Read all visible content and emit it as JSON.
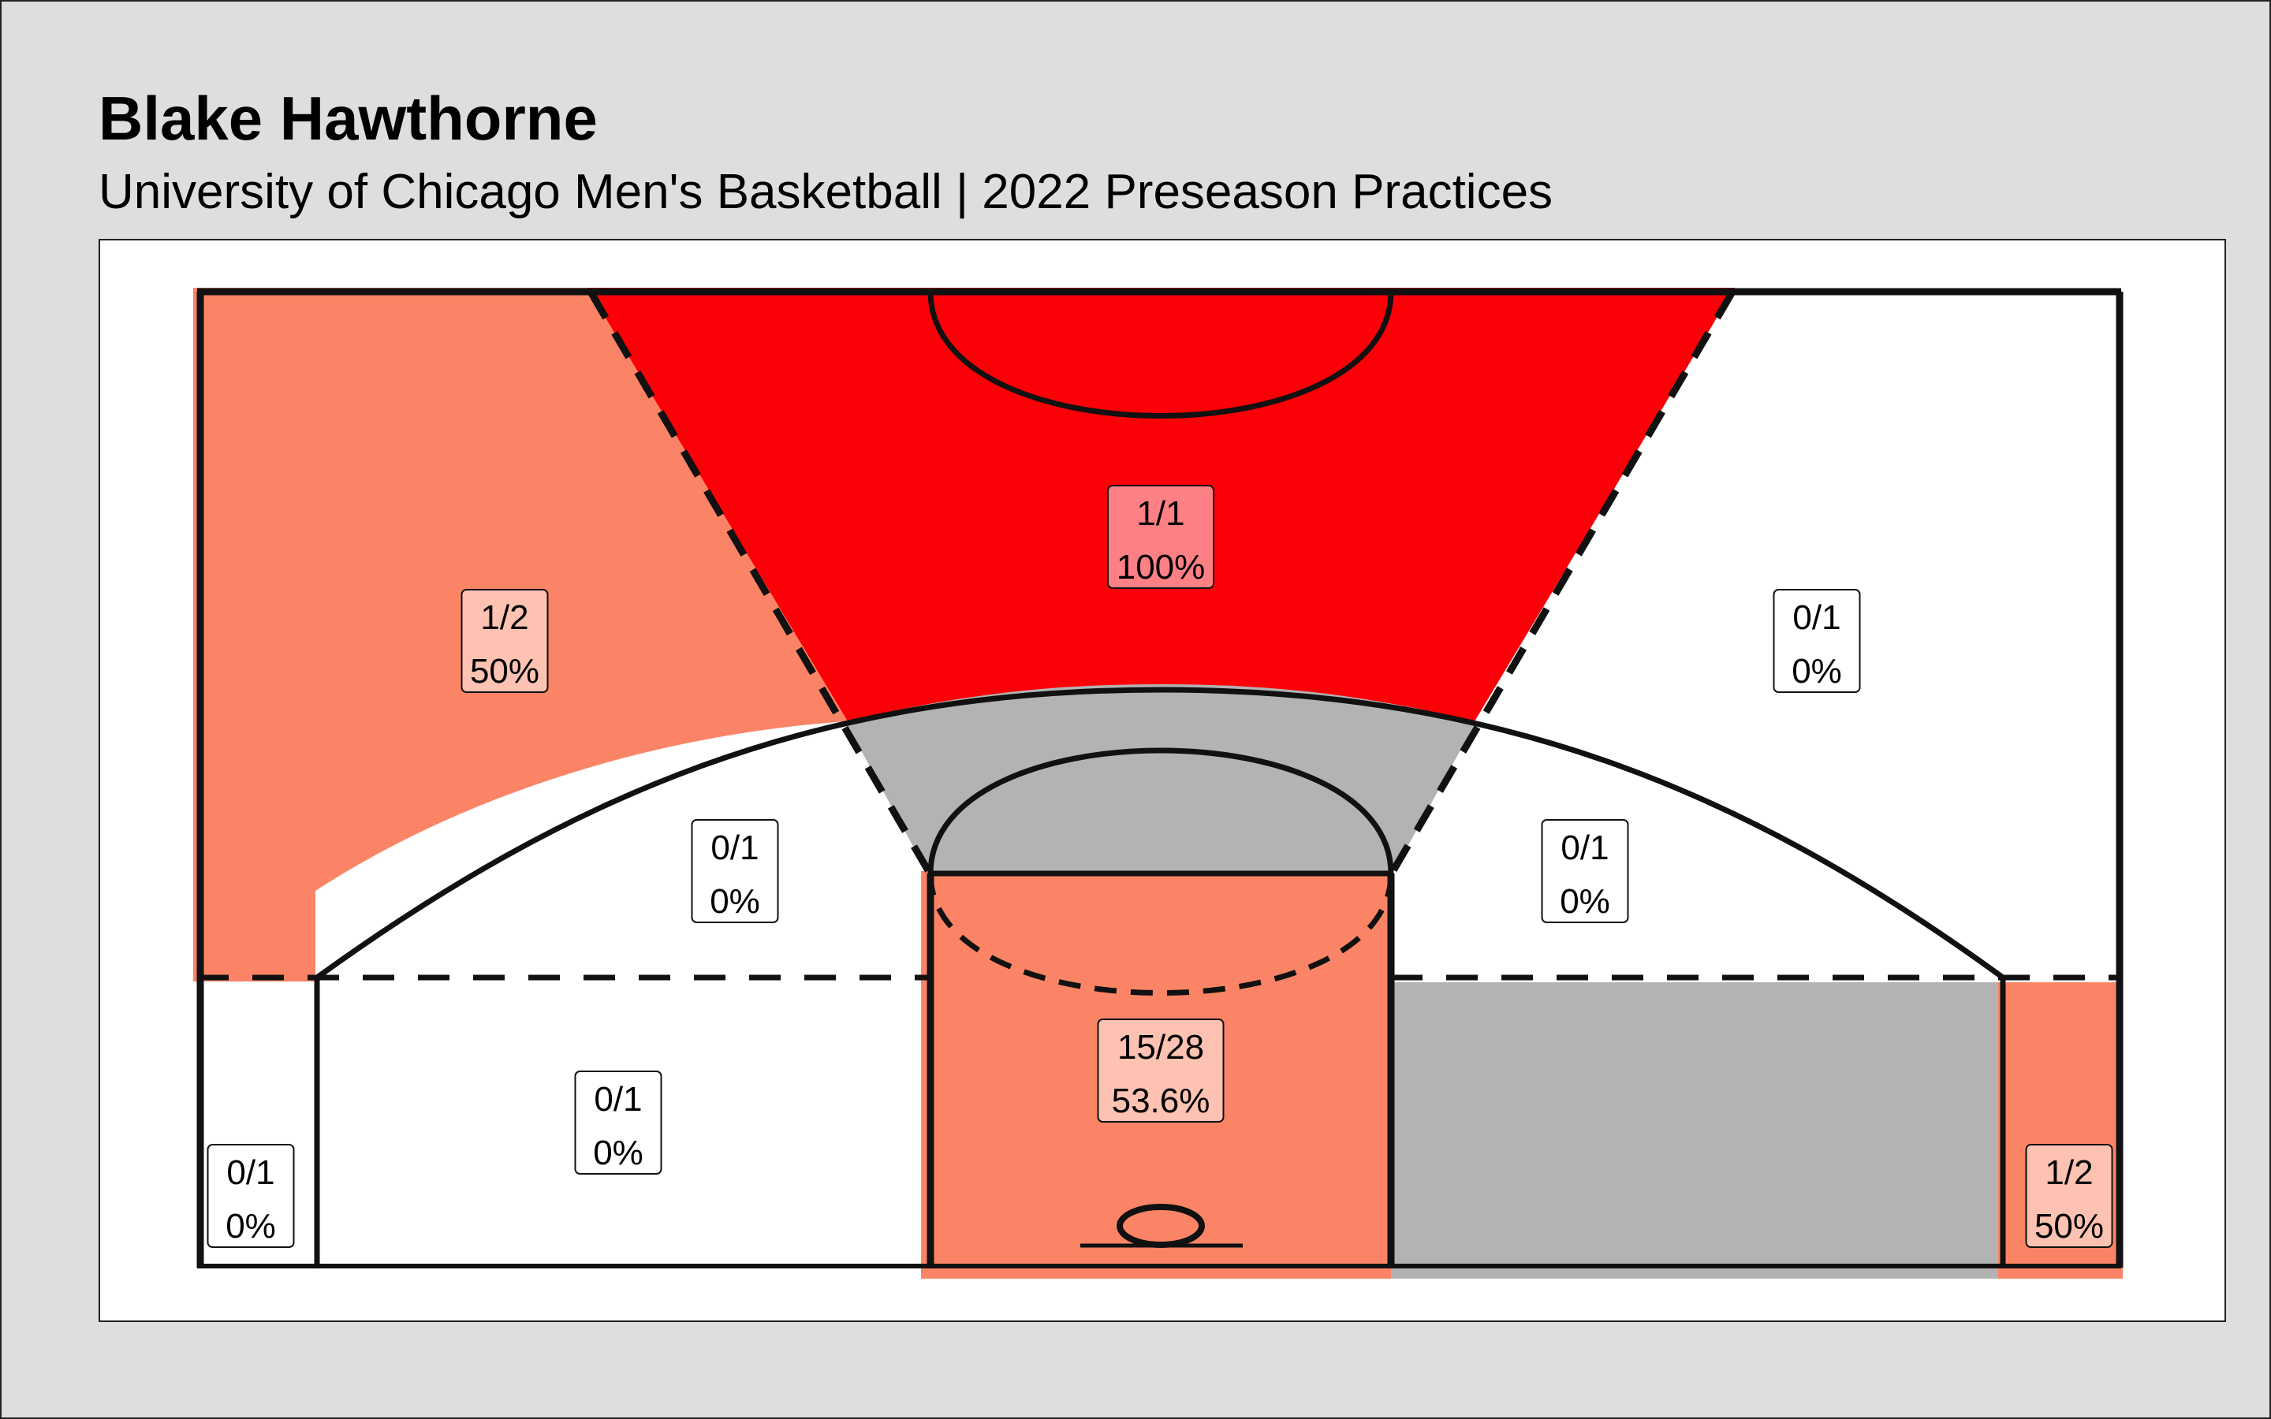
{
  "title": "Blake Hawthorne",
  "subtitle": "University of Chicago Men's Basketball | 2022 Preseason Practices",
  "colors": {
    "page_background": "#dedede",
    "panel_background": "#ffffff",
    "hot": "#fb0007",
    "warm": "#fc8466",
    "cold": "#ffffff",
    "no_attempts": "#b3b3b3",
    "label_hot": "#fd8084",
    "label_warm": "#fdc2b2",
    "label_cold": "#ffffff"
  },
  "chart_data": {
    "type": "heatmap",
    "title": "Blake Hawthorne",
    "subtitle": "University of Chicago Men's Basketball | 2022 Preseason Practices",
    "zones": [
      {
        "zone": "left-corner-three",
        "made": 0,
        "attempts": 1,
        "made_attempts": "0/1",
        "pct": 0,
        "pct_label": "0%"
      },
      {
        "zone": "left-baseline-midrange",
        "made": 0,
        "attempts": 1,
        "made_attempts": "0/1",
        "pct": 0,
        "pct_label": "0%"
      },
      {
        "zone": "paint",
        "made": 15,
        "attempts": 28,
        "made_attempts": "15/28",
        "pct": 53.6,
        "pct_label": "53.6%"
      },
      {
        "zone": "right-baseline-midrange",
        "made": 0,
        "attempts": 0,
        "made_attempts": "",
        "pct": null,
        "pct_label": ""
      },
      {
        "zone": "right-corner-three",
        "made": 1,
        "attempts": 2,
        "made_attempts": "1/2",
        "pct": 50,
        "pct_label": "50%"
      },
      {
        "zone": "left-wing-midrange",
        "made": 0,
        "attempts": 1,
        "made_attempts": "0/1",
        "pct": 0,
        "pct_label": "0%"
      },
      {
        "zone": "top-key-midrange",
        "made": 0,
        "attempts": 0,
        "made_attempts": "",
        "pct": null,
        "pct_label": ""
      },
      {
        "zone": "right-wing-midrange",
        "made": 0,
        "attempts": 1,
        "made_attempts": "0/1",
        "pct": 0,
        "pct_label": "0%"
      },
      {
        "zone": "left-wing-three",
        "made": 1,
        "attempts": 2,
        "made_attempts": "1/2",
        "pct": 50,
        "pct_label": "50%"
      },
      {
        "zone": "top-of-key-three",
        "made": 1,
        "attempts": 1,
        "made_attempts": "1/1",
        "pct": 100,
        "pct_label": "100%"
      },
      {
        "zone": "right-wing-three",
        "made": 0,
        "attempts": 1,
        "made_attempts": "0/1",
        "pct": 0,
        "pct_label": "0%"
      }
    ]
  }
}
